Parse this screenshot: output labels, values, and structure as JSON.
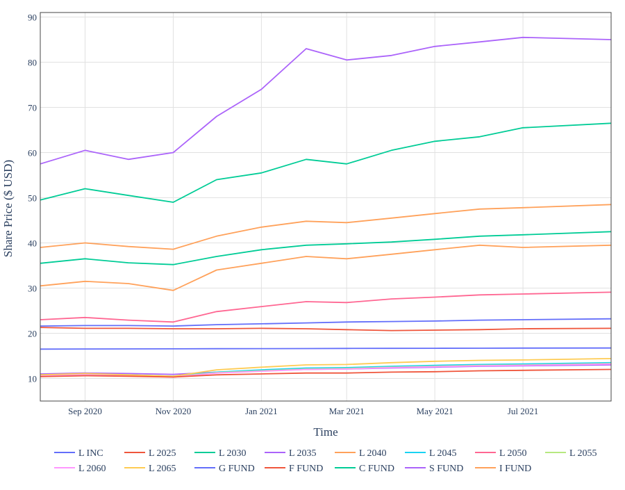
{
  "chart_data": {
    "type": "line",
    "xlabel": "Time",
    "ylabel": "Share Price ($ USD)",
    "x_range": [
      "2020-08-01",
      "2021-08-31"
    ],
    "ylim": [
      5,
      91
    ],
    "y_ticks": [
      10,
      20,
      30,
      40,
      50,
      60,
      70,
      80,
      90
    ],
    "x_ticks": [
      {
        "date": "2020-09-01",
        "label": "Sep 2020"
      },
      {
        "date": "2020-11-01",
        "label": "Nov 2020"
      },
      {
        "date": "2021-01-01",
        "label": "Jan 2021"
      },
      {
        "date": "2021-03-01",
        "label": "Mar 2021"
      },
      {
        "date": "2021-05-01",
        "label": "May 2021"
      },
      {
        "date": "2021-07-01",
        "label": "Jul 2021"
      }
    ],
    "grid": true,
    "legend_position": "bottom",
    "series": [
      {
        "name": "L INC",
        "color": "#636efa",
        "x": [
          "2020-08-01",
          "2020-09-01",
          "2020-10-01",
          "2020-11-01",
          "2020-12-01",
          "2021-01-01",
          "2021-02-01",
          "2021-03-01",
          "2021-04-01",
          "2021-05-01",
          "2021-06-01",
          "2021-07-01",
          "2021-08-31"
        ],
        "values": [
          21.6,
          21.7,
          21.7,
          21.6,
          21.9,
          22.1,
          22.3,
          22.5,
          22.6,
          22.7,
          22.9,
          23.0,
          23.2
        ]
      },
      {
        "name": "L 2025",
        "color": "#ef553b",
        "x": [
          "2020-08-01",
          "2020-09-01",
          "2020-10-01",
          "2020-11-01",
          "2020-12-01",
          "2021-01-01",
          "2021-02-01",
          "2021-03-01",
          "2021-04-01",
          "2021-05-01",
          "2021-06-01",
          "2021-07-01",
          "2021-08-31"
        ],
        "values": [
          21.3,
          21.1,
          21.1,
          21.0,
          21.0,
          21.1,
          21.0,
          20.8,
          20.6,
          20.7,
          20.8,
          21.0,
          21.1
        ]
      },
      {
        "name": "L 2030",
        "color": "#00cc96",
        "x": [
          "2020-08-01",
          "2020-09-01",
          "2020-10-01",
          "2020-11-01",
          "2020-12-01",
          "2021-01-01",
          "2021-02-01",
          "2021-03-01",
          "2021-04-01",
          "2021-05-01",
          "2021-06-01",
          "2021-07-01",
          "2021-08-31"
        ],
        "values": [
          35.5,
          36.5,
          35.6,
          35.2,
          37.0,
          38.5,
          39.5,
          39.8,
          40.2,
          40.8,
          41.5,
          41.8,
          42.5
        ]
      },
      {
        "name": "L 2035",
        "color": "#ab63fa",
        "x": [
          "2020-08-01",
          "2020-09-01",
          "2020-10-01",
          "2020-11-01",
          "2020-12-01",
          "2021-01-01",
          "2021-02-01",
          "2021-03-01",
          "2021-04-01",
          "2021-05-01",
          "2021-06-01",
          "2021-07-01",
          "2021-08-31"
        ],
        "values": [
          11.0,
          11.2,
          11.1,
          10.9,
          11.4,
          11.7,
          12.0,
          12.1,
          12.3,
          12.5,
          12.7,
          12.8,
          13.0
        ]
      },
      {
        "name": "L 2040",
        "color": "#ffa15a",
        "x": [
          "2020-08-01",
          "2020-09-01",
          "2020-10-01",
          "2020-11-01",
          "2020-12-01",
          "2021-01-01",
          "2021-02-01",
          "2021-03-01",
          "2021-04-01",
          "2021-05-01",
          "2021-06-01",
          "2021-07-01",
          "2021-08-31"
        ],
        "values": [
          39.0,
          40.0,
          39.2,
          38.6,
          41.5,
          43.5,
          44.8,
          44.5,
          45.5,
          46.5,
          47.5,
          47.8,
          48.5
        ]
      },
      {
        "name": "L 2045",
        "color": "#19d3f3",
        "x": [
          "2020-08-01",
          "2020-09-01",
          "2020-10-01",
          "2020-11-01",
          "2020-12-01",
          "2021-01-01",
          "2021-02-01",
          "2021-03-01",
          "2021-04-01",
          "2021-05-01",
          "2021-06-01",
          "2021-07-01",
          "2021-08-31"
        ],
        "values": [
          10.8,
          11.0,
          10.8,
          10.5,
          11.4,
          11.9,
          12.3,
          12.4,
          12.7,
          12.9,
          13.1,
          13.2,
          13.5
        ]
      },
      {
        "name": "L 2050",
        "color": "#ff6692",
        "x": [
          "2020-08-01",
          "2020-09-01",
          "2020-10-01",
          "2020-11-01",
          "2020-12-01",
          "2021-01-01",
          "2021-02-01",
          "2021-03-01",
          "2021-04-01",
          "2021-05-01",
          "2021-06-01",
          "2021-07-01",
          "2021-08-31"
        ],
        "values": [
          23.0,
          23.5,
          22.9,
          22.5,
          24.8,
          25.9,
          27.0,
          26.8,
          27.6,
          28.0,
          28.5,
          28.7,
          29.1
        ]
      },
      {
        "name": "L 2055",
        "color": "#b6e880",
        "x": [
          "2020-08-01",
          "2020-09-01",
          "2020-10-01",
          "2020-11-01",
          "2020-12-01",
          "2021-01-01",
          "2021-02-01",
          "2021-03-01",
          "2021-04-01",
          "2021-05-01",
          "2021-06-01",
          "2021-07-01",
          "2021-08-31"
        ],
        "values": [
          10.7,
          10.9,
          10.7,
          10.4,
          11.3,
          11.7,
          12.1,
          12.2,
          12.5,
          12.7,
          12.9,
          13.0,
          13.3
        ]
      },
      {
        "name": "L 2060",
        "color": "#ff97ff",
        "x": [
          "2020-08-01",
          "2020-09-01",
          "2020-10-01",
          "2020-11-01",
          "2020-12-01",
          "2021-01-01",
          "2021-02-01",
          "2021-03-01",
          "2021-04-01",
          "2021-05-01",
          "2021-06-01",
          "2021-07-01",
          "2021-08-31"
        ],
        "values": [
          10.6,
          10.8,
          10.6,
          10.3,
          11.2,
          11.6,
          12.0,
          12.1,
          12.4,
          12.6,
          12.8,
          12.9,
          13.2
        ]
      },
      {
        "name": "L 2065",
        "color": "#fecb52",
        "x": [
          "2020-08-01",
          "2020-09-01",
          "2020-10-01",
          "2020-11-01",
          "2020-12-01",
          "2021-01-01",
          "2021-02-01",
          "2021-03-01",
          "2021-04-01",
          "2021-05-01",
          "2021-06-01",
          "2021-07-01",
          "2021-08-31"
        ],
        "values": [
          10.8,
          11.1,
          10.8,
          10.5,
          11.9,
          12.5,
          13.0,
          13.1,
          13.5,
          13.8,
          14.0,
          14.1,
          14.4
        ]
      },
      {
        "name": "G FUND",
        "color": "#636efa",
        "x": [
          "2020-08-01",
          "2020-09-01",
          "2020-10-01",
          "2020-11-01",
          "2020-12-01",
          "2021-01-01",
          "2021-02-01",
          "2021-03-01",
          "2021-04-01",
          "2021-05-01",
          "2021-06-01",
          "2021-07-01",
          "2021-08-31"
        ],
        "values": [
          16.5,
          16.52,
          16.54,
          16.56,
          16.58,
          16.6,
          16.62,
          16.64,
          16.66,
          16.68,
          16.7,
          16.72,
          16.74
        ]
      },
      {
        "name": "F FUND",
        "color": "#ef553b",
        "x": [
          "2020-08-01",
          "2020-09-01",
          "2020-10-01",
          "2020-11-01",
          "2020-12-01",
          "2021-01-01",
          "2021-02-01",
          "2021-03-01",
          "2021-04-01",
          "2021-05-01",
          "2021-06-01",
          "2021-07-01",
          "2021-08-31"
        ],
        "values": [
          10.4,
          10.6,
          10.5,
          10.3,
          10.8,
          11.0,
          11.2,
          11.2,
          11.4,
          11.5,
          11.7,
          11.8,
          12.0
        ]
      },
      {
        "name": "C FUND",
        "color": "#00cc96",
        "x": [
          "2020-08-01",
          "2020-09-01",
          "2020-10-01",
          "2020-11-01",
          "2020-12-01",
          "2021-01-01",
          "2021-02-01",
          "2021-03-01",
          "2021-04-01",
          "2021-05-01",
          "2021-06-01",
          "2021-07-01",
          "2021-08-31"
        ],
        "values": [
          49.5,
          52.0,
          50.5,
          49.0,
          54.0,
          55.5,
          58.5,
          57.5,
          60.5,
          62.5,
          63.5,
          65.5,
          66.5
        ]
      },
      {
        "name": "S FUND",
        "color": "#ab63fa",
        "x": [
          "2020-08-01",
          "2020-09-01",
          "2020-10-01",
          "2020-11-01",
          "2020-12-01",
          "2021-01-01",
          "2021-02-01",
          "2021-03-01",
          "2021-04-01",
          "2021-05-01",
          "2021-06-01",
          "2021-07-01",
          "2021-08-31"
        ],
        "values": [
          57.5,
          60.5,
          58.5,
          60.0,
          68.0,
          74.0,
          83.0,
          80.5,
          81.5,
          83.5,
          84.5,
          85.5,
          85.0
        ]
      },
      {
        "name": "I FUND",
        "color": "#ffa15a",
        "x": [
          "2020-08-01",
          "2020-09-01",
          "2020-10-01",
          "2020-11-01",
          "2020-12-01",
          "2021-01-01",
          "2021-02-01",
          "2021-03-01",
          "2021-04-01",
          "2021-05-01",
          "2021-06-01",
          "2021-07-01",
          "2021-08-31"
        ],
        "values": [
          30.5,
          31.5,
          31.0,
          29.5,
          34.0,
          35.5,
          37.0,
          36.5,
          37.5,
          38.5,
          39.5,
          39.0,
          39.5
        ]
      }
    ]
  }
}
